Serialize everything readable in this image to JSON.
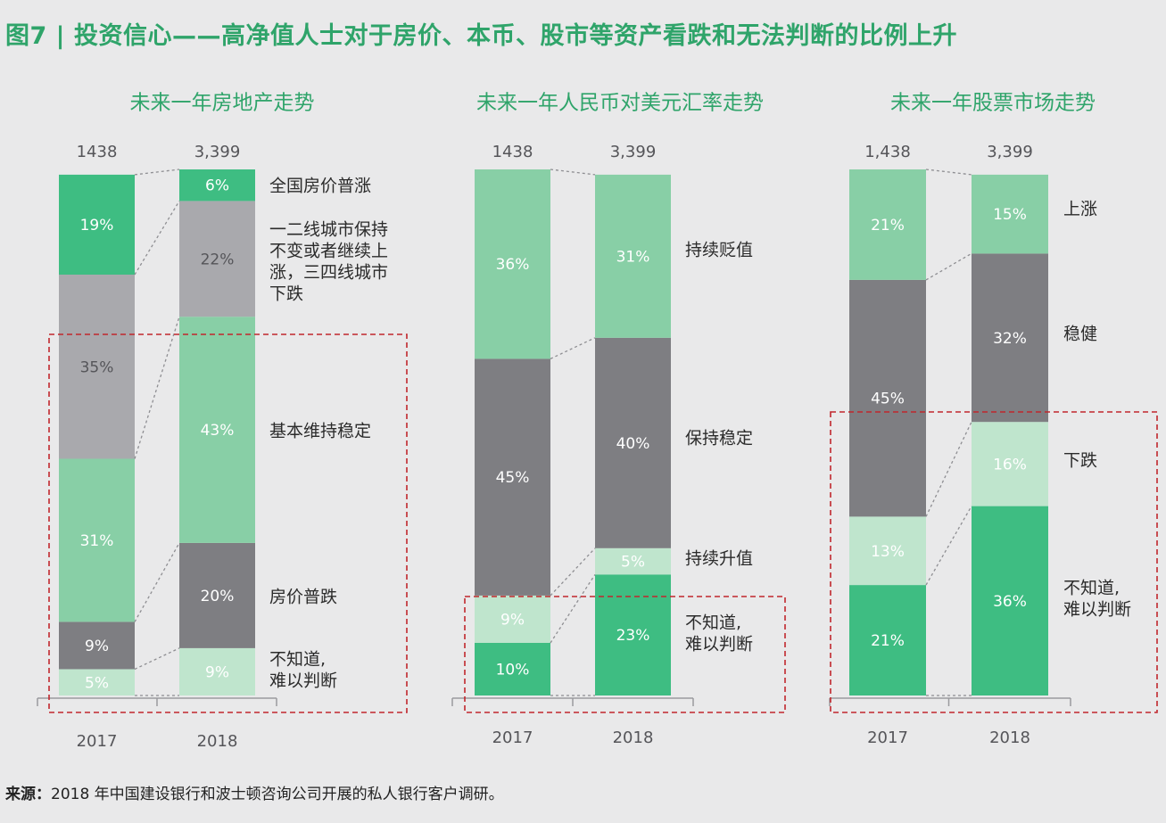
{
  "figure": {
    "title": "图7 | 投资信心——高净值人士对于房价、本币、股市等资产看跌和无法判断的比例上升",
    "source_label": "来源：",
    "source_text": "2018 年中国建设银行和波士顿咨询公司开展的私人银行客户调研。"
  },
  "colors": {
    "dark_green": "#3ebd82",
    "light_green": "#88cfa6",
    "pale_green": "#bfe5cd",
    "light_gray": "#a9a9ad",
    "dark_gray": "#7e7e82",
    "title_green": "#2fa46a",
    "highlight_box": "#c1272d",
    "background": "#e9e9ea"
  },
  "chart_data": [
    {
      "type": "stacked-bar",
      "title": "未来一年房地产走势",
      "categories": [
        "2017",
        "2018"
      ],
      "sample_sizes": [
        "1438",
        "3,399"
      ],
      "series": [
        {
          "name": "不知道，难以判断",
          "label_lines": [
            "不知道,",
            "难以判断"
          ],
          "color": "pale_green",
          "values": [
            5,
            9
          ]
        },
        {
          "name": "房价普跌",
          "label_lines": [
            "房价普跌"
          ],
          "color": "dark_gray",
          "values": [
            9,
            20
          ]
        },
        {
          "name": "基本维持稳定",
          "label_lines": [
            "基本维持稳定"
          ],
          "color": "light_green",
          "values": [
            31,
            43
          ]
        },
        {
          "name": "一二线城市保持不变或者继续上涨，三四线城市下跌",
          "label_lines": [
            "一二线城市保持",
            "不变或者继续上",
            "涨，三四线城市",
            "下跌"
          ],
          "color": "light_gray",
          "values": [
            35,
            22
          ]
        },
        {
          "name": "全国房价普涨",
          "label_lines": [
            "全国房价普涨"
          ],
          "color": "dark_green",
          "values": [
            19,
            6
          ]
        }
      ],
      "highlight_series_count": 3,
      "ylim": [
        0,
        100
      ]
    },
    {
      "type": "stacked-bar",
      "title": "未来一年人民币对美元汇率走势",
      "categories": [
        "2017",
        "2018"
      ],
      "sample_sizes": [
        "1438",
        "3,399"
      ],
      "series": [
        {
          "name": "不知道，难以判断",
          "label_lines": [
            "不知道,",
            "难以判断"
          ],
          "color": "dark_green",
          "values": [
            10,
            23
          ]
        },
        {
          "name": "持续升值",
          "label_lines": [
            "持续升值"
          ],
          "color": "pale_green",
          "values": [
            9,
            5
          ]
        },
        {
          "name": "保持稳定",
          "label_lines": [
            "保持稳定"
          ],
          "color": "dark_gray",
          "values": [
            45,
            40
          ]
        },
        {
          "name": "持续贬值",
          "label_lines": [
            "持续贬值"
          ],
          "color": "light_green",
          "values": [
            36,
            31
          ]
        }
      ],
      "highlight_series_count": 1,
      "ylim": [
        0,
        100
      ]
    },
    {
      "type": "stacked-bar",
      "title": "未来一年股票市场走势",
      "categories": [
        "2017",
        "2018"
      ],
      "sample_sizes": [
        "1,438",
        "3,399"
      ],
      "series": [
        {
          "name": "不知道，难以判断",
          "label_lines": [
            "不知道,",
            "难以判断"
          ],
          "color": "dark_green",
          "values": [
            21,
            36
          ]
        },
        {
          "name": "下跌",
          "label_lines": [
            "下跌"
          ],
          "color": "pale_green",
          "values": [
            13,
            16
          ]
        },
        {
          "name": "稳健",
          "label_lines": [
            "稳健"
          ],
          "color": "dark_gray",
          "values": [
            45,
            32
          ]
        },
        {
          "name": "上涨",
          "label_lines": [
            "上涨"
          ],
          "color": "light_green",
          "values": [
            21,
            15
          ]
        }
      ],
      "highlight_series_count": 2,
      "ylim": [
        0,
        100
      ]
    }
  ]
}
